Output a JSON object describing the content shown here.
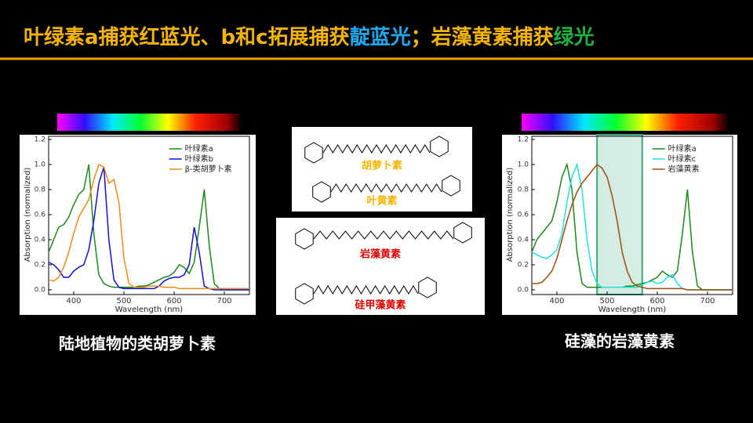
{
  "slide": {
    "title_parts": [
      {
        "text": "叶绿素a捕获红蓝光、b和c拓展捕获",
        "color": "#f5b400"
      },
      {
        "text": "靛蓝光",
        "color": "#1ea8ee"
      },
      {
        "text": "；岩藻黄素捕获",
        "color": "#f5b400"
      },
      {
        "text": "绿光",
        "color": "#22b040"
      }
    ],
    "molecules": [
      {
        "label": "胡萝卜素",
        "color": "#f5b400"
      },
      {
        "label": "叶黄素",
        "color": "#f5b400"
      },
      {
        "label": "岩藻黄素",
        "color": "#e00000"
      },
      {
        "label": "硅甲藻黄素",
        "color": "#e00000"
      }
    ],
    "captions": [
      "陆地植物的类胡萝卜素",
      "硅藻的岩藻黄素"
    ]
  },
  "chart_data": [
    {
      "type": "line",
      "xlabel": "Wavelength (nm)",
      "ylabel": "Absorption (normalized)",
      "x": [
        350,
        360,
        370,
        380,
        390,
        400,
        410,
        420,
        430,
        440,
        450,
        460,
        470,
        480,
        490,
        500,
        510,
        520,
        530,
        540,
        550,
        560,
        570,
        580,
        590,
        600,
        610,
        620,
        630,
        640,
        650,
        660,
        670,
        680,
        690,
        700,
        710,
        720,
        730,
        740,
        750
      ],
      "xlim": [
        350,
        750
      ],
      "xticks": [
        400,
        500,
        600,
        700
      ],
      "ylim": [
        0,
        1.2
      ],
      "yticks": [
        {
          "value": 0,
          "label": "0.0"
        },
        0.2,
        0.4,
        0.6,
        0.8,
        {
          "value": 1,
          "label": "1.0"
        },
        1.2
      ],
      "series": [
        {
          "name": "叶绿素a",
          "color": "#1a8a1a",
          "values": [
            0.3,
            0.4,
            0.5,
            0.52,
            0.58,
            0.68,
            0.76,
            0.8,
            1.0,
            0.45,
            0.12,
            0.05,
            0.03,
            0.02,
            0.02,
            0.02,
            0.02,
            0.02,
            0.03,
            0.03,
            0.04,
            0.06,
            0.08,
            0.1,
            0.11,
            0.14,
            0.2,
            0.18,
            0.13,
            0.22,
            0.5,
            0.8,
            0.35,
            0.05,
            0.01,
            0,
            0,
            0,
            0,
            0,
            0
          ]
        },
        {
          "name": "叶绿素b",
          "color": "#1010d0",
          "values": [
            0.22,
            0.2,
            0.16,
            0.1,
            0.1,
            0.15,
            0.18,
            0.2,
            0.32,
            0.55,
            0.85,
            0.98,
            0.4,
            0.08,
            0.02,
            0.01,
            0.01,
            0.01,
            0.01,
            0.01,
            0.01,
            0.01,
            0.03,
            0.07,
            0.09,
            0.1,
            0.1,
            0.12,
            0.2,
            0.5,
            0.3,
            0.03,
            0.01,
            0,
            0,
            0,
            0,
            0,
            0,
            0,
            0
          ]
        },
        {
          "name": "β-类胡萝卜素",
          "color": "#f08a1a",
          "values": [
            0.08,
            0.07,
            0.1,
            0.18,
            0.3,
            0.45,
            0.58,
            0.65,
            0.72,
            0.88,
            1.0,
            0.98,
            0.85,
            0.88,
            0.7,
            0.25,
            0.05,
            0.02,
            0.02,
            0.02,
            0.03,
            0.03,
            0.03,
            0.02,
            0.02,
            0.02,
            0.01,
            0.01,
            0.01,
            0.01,
            0.01,
            0.01,
            0.01,
            0.01,
            0.01,
            0.01,
            0.01,
            0.01,
            0.01,
            0.01,
            0.01
          ]
        }
      ]
    },
    {
      "type": "line",
      "xlabel": "Wavelength (nm)",
      "ylabel": "Absorption (normalized)",
      "x": [
        350,
        360,
        370,
        380,
        390,
        400,
        410,
        420,
        430,
        440,
        450,
        460,
        470,
        480,
        490,
        500,
        510,
        520,
        530,
        540,
        550,
        560,
        570,
        580,
        590,
        600,
        610,
        620,
        630,
        640,
        650,
        660,
        670,
        680,
        690,
        700,
        710,
        720,
        730,
        740,
        750
      ],
      "xlim": [
        350,
        750
      ],
      "xticks": [
        400,
        500,
        600,
        700
      ],
      "ylim": [
        0,
        1.2
      ],
      "yticks": [
        {
          "value": 0,
          "label": "0.0"
        },
        0.2,
        0.4,
        0.6,
        0.8,
        {
          "value": 1,
          "label": "1.0"
        },
        1.2
      ],
      "highlight": [
        480,
        570
      ],
      "series": [
        {
          "name": "叶绿素a",
          "color": "#1a8a1a",
          "values": [
            0.3,
            0.4,
            0.45,
            0.5,
            0.55,
            0.7,
            0.9,
            1.0,
            0.8,
            0.3,
            0.05,
            0.02,
            0.02,
            0.02,
            0.02,
            0.02,
            0.02,
            0.02,
            0.02,
            0.03,
            0.03,
            0.04,
            0.05,
            0.06,
            0.08,
            0.1,
            0.15,
            0.12,
            0.1,
            0.15,
            0.45,
            0.8,
            0.3,
            0.03,
            0,
            0,
            0,
            0,
            0,
            0,
            0
          ]
        },
        {
          "name": "叶绿素c",
          "color": "#20e0e0",
          "values": [
            0.3,
            0.28,
            0.26,
            0.25,
            0.28,
            0.32,
            0.45,
            0.7,
            0.9,
            1.0,
            0.8,
            0.4,
            0.15,
            0.05,
            0.02,
            0.02,
            0.02,
            0.02,
            0.02,
            0.02,
            0.02,
            0.02,
            0.04,
            0.06,
            0.07,
            0.05,
            0.06,
            0.1,
            0.12,
            0.05,
            0.01,
            0,
            0,
            0,
            0,
            0,
            0,
            0,
            0,
            0,
            0
          ]
        },
        {
          "name": "岩藻黄素",
          "color": "#a04a10",
          "values": [
            0.05,
            0.05,
            0.06,
            0.1,
            0.15,
            0.25,
            0.4,
            0.55,
            0.68,
            0.78,
            0.85,
            0.9,
            0.95,
            1.0,
            0.97,
            0.9,
            0.75,
            0.55,
            0.3,
            0.15,
            0.06,
            0.03,
            0.02,
            0.01,
            0.01,
            0.01,
            0.01,
            0.01,
            0.01,
            0.01,
            0.01,
            0,
            0,
            0,
            0,
            0,
            0,
            0,
            0,
            0,
            0
          ]
        }
      ]
    }
  ]
}
